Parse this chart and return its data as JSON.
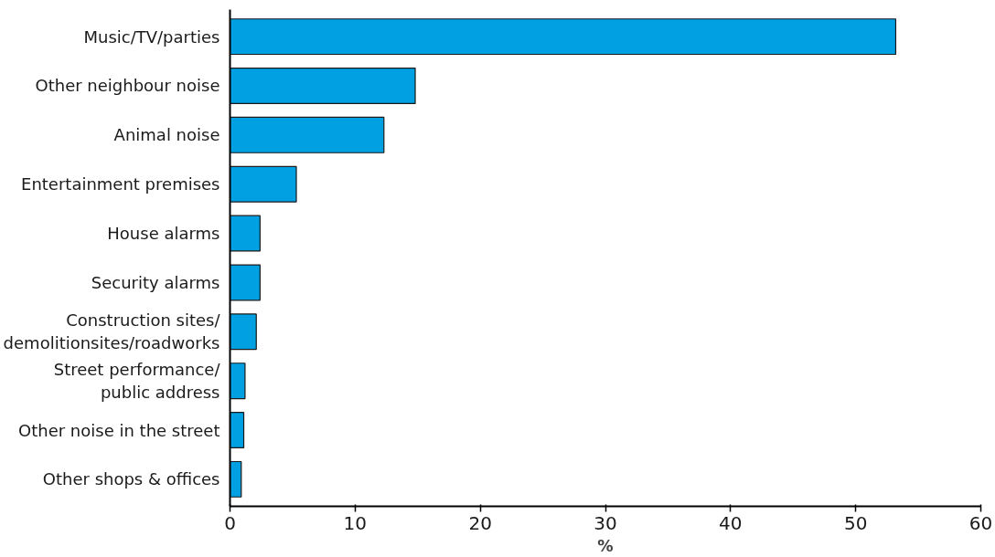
{
  "chart_data": {
    "type": "bar",
    "orientation": "horizontal",
    "xlabel": "%",
    "categories": [
      "Music/TV/parties",
      "Other neighbour noise",
      "Animal noise",
      "Entertainment premises",
      "House alarms",
      "Security alarms",
      "Construction sites/\ndemolitionsites/roadworks",
      "Street performance/\npublic address",
      "Other noise in the street",
      "Other shops & offices"
    ],
    "values": [
      53.2,
      14.8,
      12.3,
      5.3,
      2.4,
      2.4,
      2.1,
      1.2,
      1.1,
      0.9
    ],
    "color": "#00a0e3",
    "xlim": [
      0,
      60
    ],
    "xticks": [
      0,
      10,
      20,
      30,
      40,
      50,
      60
    ],
    "grid": false
  }
}
